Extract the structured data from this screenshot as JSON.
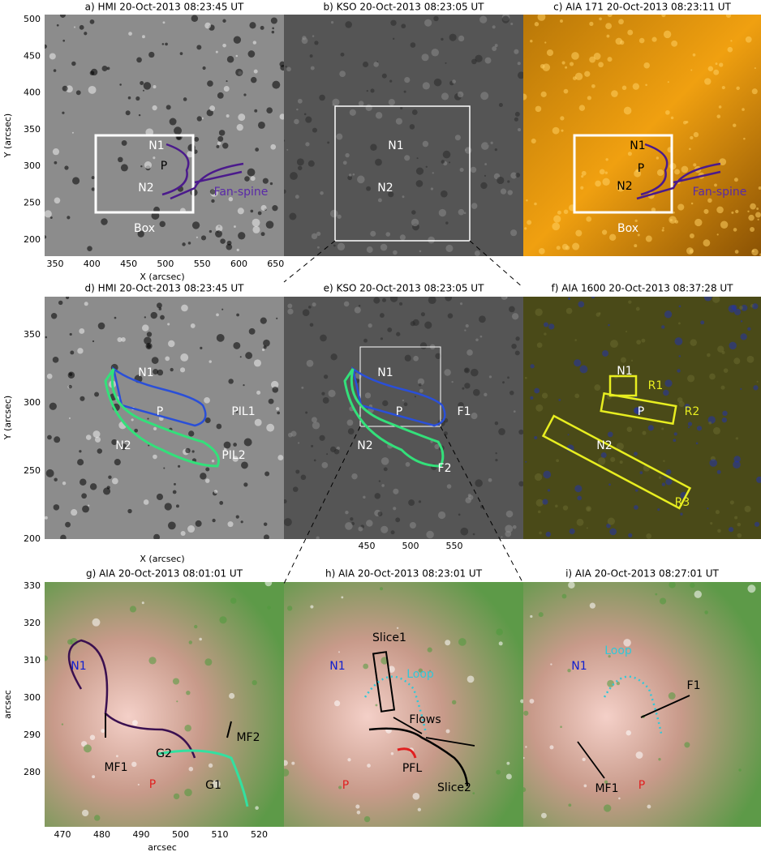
{
  "panels": [
    {
      "title": "a) HMI 20-Oct-2013 08:23:45 UT",
      "labels": [
        "N1",
        "P",
        "N2",
        "Fan-spine",
        "Box"
      ]
    },
    {
      "title": "b) KSO 20-Oct-2013 08:23:05 UT",
      "labels": [
        "N1",
        "N2"
      ]
    },
    {
      "title": "c) AIA 171 20-Oct-2013 08:23:11 UT",
      "labels": [
        "N1",
        "P",
        "N2",
        "Fan-spine",
        "Box"
      ]
    },
    {
      "title": "d) HMI 20-Oct-2013 08:23:45 UT",
      "labels": [
        "N1",
        "P",
        "N2",
        "PIL1",
        "PIL2"
      ]
    },
    {
      "title": "e) KSO 20-Oct-2013 08:23:05 UT",
      "labels": [
        "N1",
        "P",
        "N2",
        "F1",
        "F2"
      ]
    },
    {
      "title": "f) AIA 1600 20-Oct-2013 08:37:28 UT",
      "labels": [
        "N1",
        "R1",
        "P",
        "R2",
        "N2",
        "R3"
      ]
    },
    {
      "title": "g) AIA 20-Oct-2013 08:01:01 UT",
      "labels": [
        "N1",
        "MF1",
        "G2",
        "P",
        "G1",
        "MF2"
      ]
    },
    {
      "title": "h) AIA 20-Oct-2013 08:23:01 UT",
      "labels": [
        "Slice1",
        "N1",
        "Loop",
        "Flows",
        "PFL",
        "P",
        "Slice2"
      ]
    },
    {
      "title": "i) AIA 20-Oct-2013 08:27:01 UT",
      "labels": [
        "Loop",
        "N1",
        "F1",
        "MF1",
        "P"
      ]
    }
  ],
  "axes": [
    {
      "x_label": "X (arcsec)",
      "y_label": "Y (arcsec)",
      "xticks": [
        350,
        400,
        450,
        500,
        550,
        600,
        650
      ],
      "yticks": [
        500,
        450,
        400,
        350,
        300,
        250,
        200
      ]
    },
    {
      "x_label": "X (arcsec)",
      "y_label": "Y (arcsec)",
      "xticks": [
        450,
        500,
        550
      ],
      "yticks": [
        350,
        300,
        250,
        200
      ]
    },
    {
      "x_label": "arcsec",
      "y_label": "arcsec",
      "xticks": [
        470,
        480,
        490,
        500,
        510,
        520
      ],
      "yticks": [
        330,
        320,
        310,
        300,
        290,
        280
      ]
    }
  ]
}
